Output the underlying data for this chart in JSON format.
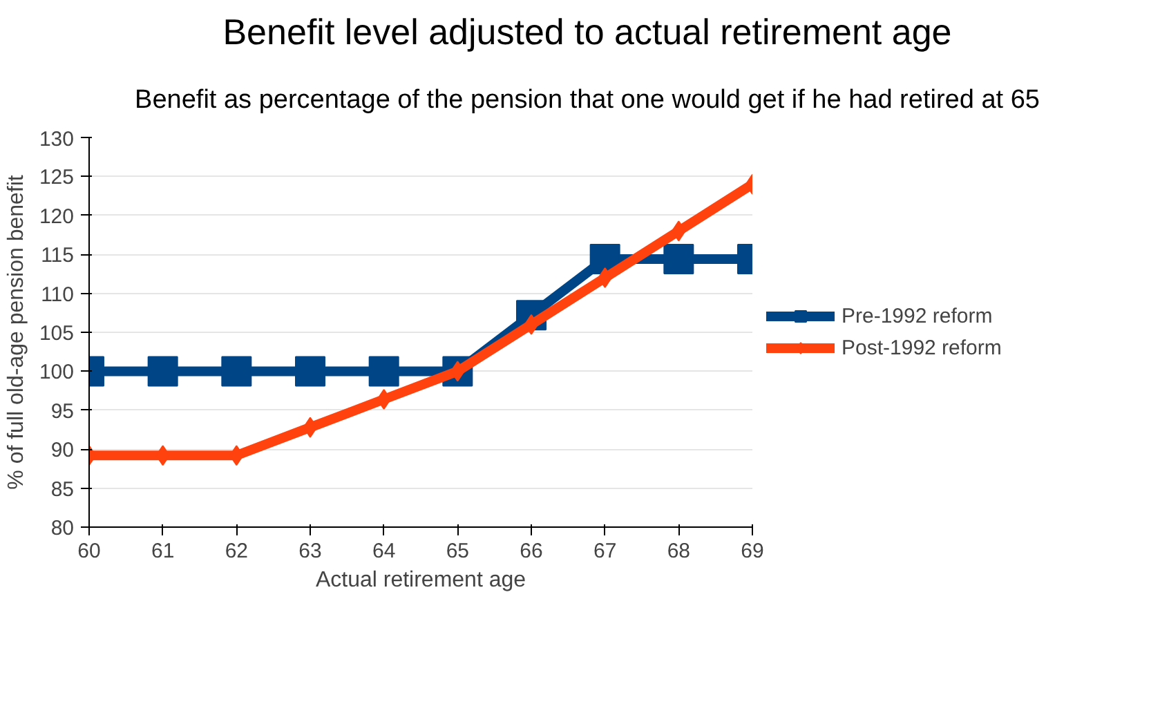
{
  "chart_data": {
    "type": "line",
    "title": "Benefit level adjusted to actual retirement age",
    "subtitle": "Benefit as percentage of the pension that one would get if he had retired at 65",
    "xlabel": "Actual retirement age",
    "ylabel": "% of full old-age pension benefit",
    "x": [
      60,
      61,
      62,
      63,
      64,
      65,
      66,
      67,
      68,
      69
    ],
    "series": [
      {
        "name": "Pre-1992 reform",
        "color": "#004586",
        "marker": "square",
        "values": [
          100,
          100,
          100,
          100,
          100,
          100,
          107.2,
          114.4,
          114.4,
          114.4
        ]
      },
      {
        "name": "Post-1992 reform",
        "color": "#ff420e",
        "marker": "diamond",
        "values": [
          89.2,
          89.2,
          89.2,
          92.8,
          96.4,
          100,
          106,
          112,
          118,
          124
        ]
      }
    ],
    "xlim": [
      60,
      69
    ],
    "xticks": [
      60,
      61,
      62,
      63,
      64,
      65,
      66,
      67,
      68,
      69
    ],
    "ylim": [
      80,
      130
    ],
    "yticks": [
      80,
      85,
      90,
      95,
      100,
      105,
      110,
      115,
      120,
      125,
      130
    ],
    "grid": "y",
    "legend": "right",
    "line_style": "solid"
  }
}
